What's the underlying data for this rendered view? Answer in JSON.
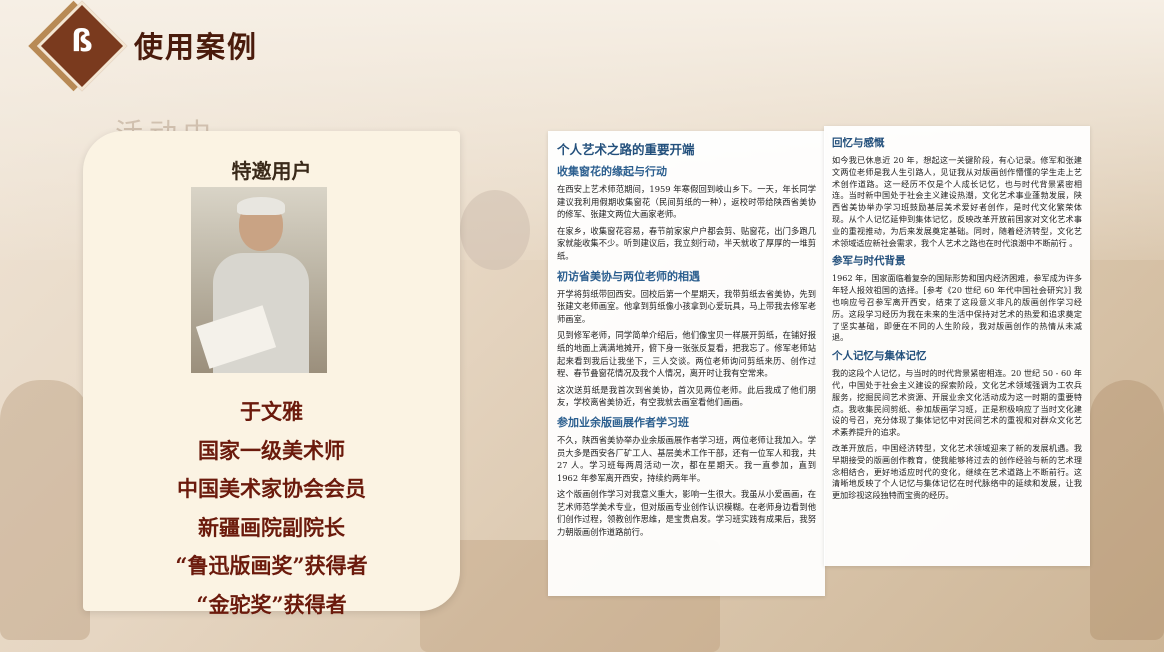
{
  "header": {
    "logo_glyph": "ß",
    "title": "使用案例"
  },
  "background": {
    "wall_text": "活动中"
  },
  "profile": {
    "label": "特邀用户",
    "photo_alt": "于文雅",
    "lines": [
      "于文雅",
      "国家一级美术师",
      "中国美术家协会会员",
      "新疆画院副院长",
      "“鲁迅版画奖”获得者",
      "“金驼奖”获得者"
    ]
  },
  "article_left": {
    "title": "个人艺术之路的重要开端",
    "sections": [
      {
        "heading": "收集窗花的缘起与行动",
        "paragraphs": [
          "在西安上艺术师范期间，1959 年寒假回到岐山乡下。一天，年长同学建议我利用假期收集窗花（民间剪纸的一种），返校时带给陕西省美协的修军、张建文两位大画家老师。",
          "在家乡，收集窗花容易，春节前家家户户都会剪、贴窗花，出门多跑几家就能收集不少。听到建议后，我立刻行动，半天就收了厚厚的一堆剪纸。"
        ]
      },
      {
        "heading": "初访省美协与两位老师的相遇",
        "paragraphs": [
          "开学将剪纸带回西安。回校后第一个星期天，我带剪纸去省美协，先到张建文老师画室。他拿到剪纸像小孩拿到心爱玩具，马上带我去修军老师画室。",
          "见到修军老师，同学简单介绍后，他们像宝贝一样展开剪纸，在铺好报纸的地面上满满地摊开，俯下身一张张反复看，把我忘了。修军老师站起来看到我后让我坐下，三人交谈。两位老师询问剪纸来历、创作过程、春节叠窗花情况及我个人情况，离开时让我有空常来。",
          "这次送剪纸是我首次到省美协，首次见两位老师。此后我成了他们朋友，学校离省美协近，有空我就去画室看他们画画。"
        ]
      },
      {
        "heading": "参加业余版画展作者学习班",
        "paragraphs": [
          "不久，陕西省美协举办业余版画展作者学习班，两位老师让我加入。学员大多是西安各厂矿工人、基层美术工作干部，还有一位军人和我，共 27 人。学习班每两周活动一次，都在星期天。我一直参加，直到 1962 年参军离开西安，持续约两年半。",
          "这个版画创作学习对我意义重大，影响一生很大。我虽从小爱画画，在艺术师范学美术专业，但对版画专业创作认识模糊。在老师身边看到他们创作过程，领教创作思维，是宝贵启发。学习班实践有成果后，我努力朝版画创作道路前行。"
        ]
      }
    ]
  },
  "article_right": {
    "sections": [
      {
        "heading": "回忆与感慨",
        "paragraphs": [
          "如今我已休息近 20 年，想起这一关键阶段，有心记录。修军和张建文两位老师是我人生引路人，见证我从对版画创作懵懂的学生走上艺术创作道路。这一经历不仅是个人成长记忆，也与时代背景紧密相连。当时新中国处于社会主义建设热潮，文化艺术事业蓬勃发展，陕西省美协举办学习班鼓励基层美术爱好者创作，是时代文化繁荣体现。从个人记忆延伸到集体记忆，反映改革开放前国家对文化艺术事业的重视推动，为后来发展奠定基础。同时，随着经济转型，文化艺术领域适应新社会需求，我个人艺术之路也在时代浪潮中不断前行 。"
        ]
      },
      {
        "heading": "参军与时代背景",
        "paragraphs": [
          "1962 年，国家面临着复杂的国际形势和国内经济困难，参军成为许多年轻人报效祖国的选择。[参考《20 世纪 60 年代中国社会研究》] 我也响应号召参军离开西安，结束了这段意义非凡的版画创作学习经历。这段学习经历为我在未来的生活中保持对艺术的热爱和追求奠定了坚实基础，即便在不同的人生阶段，我对版画创作的热情从未减退。"
        ]
      },
      {
        "heading": "个人记忆与集体记忆",
        "paragraphs": [
          "我的这段个人记忆，与当时的时代背景紧密相连。20 世纪 50 - 60 年代，中国处于社会主义建设的探索阶段，文化艺术领域强调为工农兵服务，挖掘民间艺术资源、开展业余文化活动成为这一时期的重要特点。我收集民间剪纸、参加版画学习班，正是积极响应了当时文化建设的号召，充分体现了集体记忆中对民间艺术的重视和对群众文化艺术素养提升的追求。",
          "改革开放后，中国经济转型，文化艺术领域迎来了新的发展机遇。我早期接受的版画创作教育，使我能够将过去的创作经验与新的艺术理念相结合，更好地适应时代的变化，继续在艺术道路上不断前行。这清晰地反映了个人记忆与集体记忆在时代脉络中的延续和发展，让我更加珍视这段独特而宝贵的经历。"
        ]
      }
    ]
  }
}
